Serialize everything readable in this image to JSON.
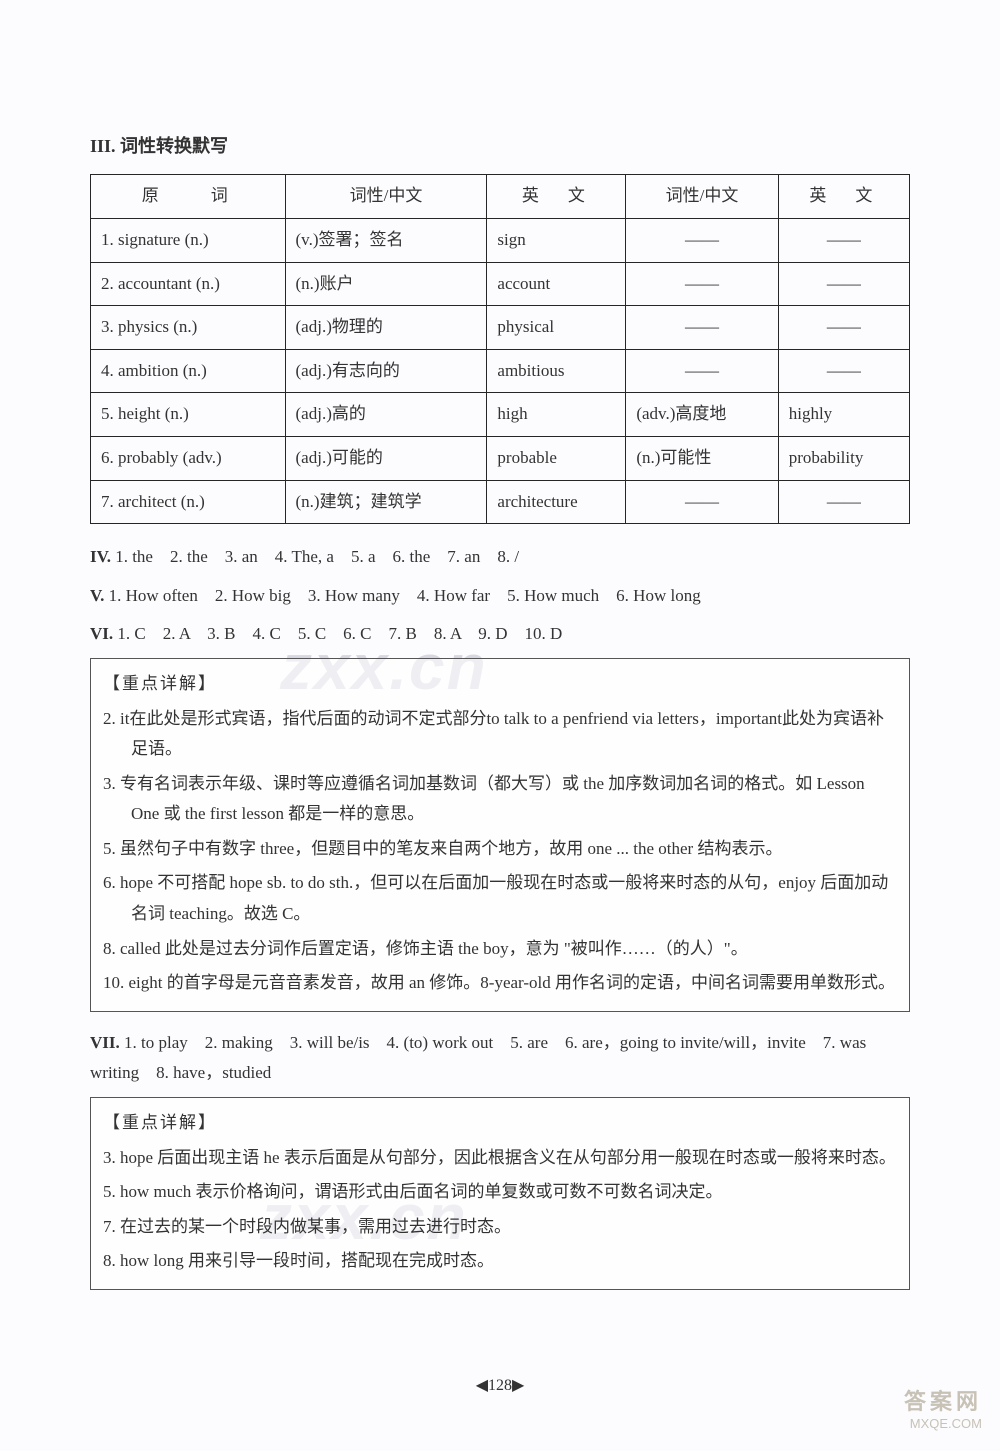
{
  "section3_title": "III. 词性转换默写",
  "table": {
    "headers": [
      "原　　词",
      "词性/中文",
      "英　文",
      "词性/中文",
      "英　文"
    ],
    "rows": [
      [
        "1. signature (n.)",
        "(v.)签署；签名",
        "sign",
        "——",
        "——"
      ],
      [
        "2. accountant (n.)",
        "(n.)账户",
        "account",
        "——",
        "——"
      ],
      [
        "3. physics (n.)",
        "(adj.)物理的",
        "physical",
        "——",
        "——"
      ],
      [
        "4. ambition (n.)",
        "(adj.)有志向的",
        "ambitious",
        "——",
        "——"
      ],
      [
        "5. height (n.)",
        "(adj.)高的",
        "high",
        "(adv.)高度地",
        "highly"
      ],
      [
        "6. probably (adv.)",
        "(adj.)可能的",
        "probable",
        "(n.)可能性",
        "probability"
      ],
      [
        "7. architect (n.)",
        "(n.)建筑；建筑学",
        "architecture",
        "——",
        "——"
      ]
    ]
  },
  "section4": {
    "label": "IV.",
    "text": " 1. the　2. the　3. an　4. The, a　5. a　6. the　7. an　8. /"
  },
  "section5": {
    "label": "V.",
    "text": " 1. How often　2. How big　3. How many　4. How far　5. How much　6. How long"
  },
  "section6": {
    "label": "VI.",
    "text": " 1. C　2. A　3. B　4. C　5. C　6. C　7. B　8. A　9. D　10. D"
  },
  "explain1": {
    "title": "【重点详解】",
    "items": [
      "2. it在此处是形式宾语，指代后面的动词不定式部分to talk to a penfriend via letters，important此处为宾语补足语。",
      "3. 专有名词表示年级、课时等应遵循名词加基数词（都大写）或 the 加序数词加名词的格式。如 Lesson One 或 the first lesson 都是一样的意思。",
      "5. 虽然句子中有数字 three，但题目中的笔友来自两个地方，故用 one ... the other 结构表示。",
      "6. hope 不可搭配 hope sb. to do sth.，但可以在后面加一般现在时态或一般将来时态的从句，enjoy 后面加动名词 teaching。故选 C。",
      "8. called 此处是过去分词作后置定语，修饰主语 the boy，意为 \"被叫作……（的人）\"。",
      "10. eight 的首字母是元音音素发音，故用 an 修饰。8-year-old 用作名词的定语，中间名词需要用单数形式。"
    ]
  },
  "section7": {
    "label": "VII.",
    "text": " 1. to play　2. making　3. will be/is　4. (to) work out　5. are　6. are，going to invite/will，invite　7. was writing　8. have，studied"
  },
  "explain2": {
    "title": "【重点详解】",
    "items": [
      "3. hope 后面出现主语 he 表示后面是从句部分，因此根据含义在从句部分用一般现在时态或一般将来时态。",
      "5. how much 表示价格询问，谓语形式由后面名词的单复数或可数不可数名词决定。",
      "7. 在过去的某一个时段内做某事，需用过去进行时态。",
      "8. how long 用来引导一段时间，搭配现在完成时态。"
    ]
  },
  "page_number": "◀128▶",
  "watermark": "zxx.cn",
  "corner": {
    "ch": "答案网",
    "url": "MXQE.COM"
  }
}
